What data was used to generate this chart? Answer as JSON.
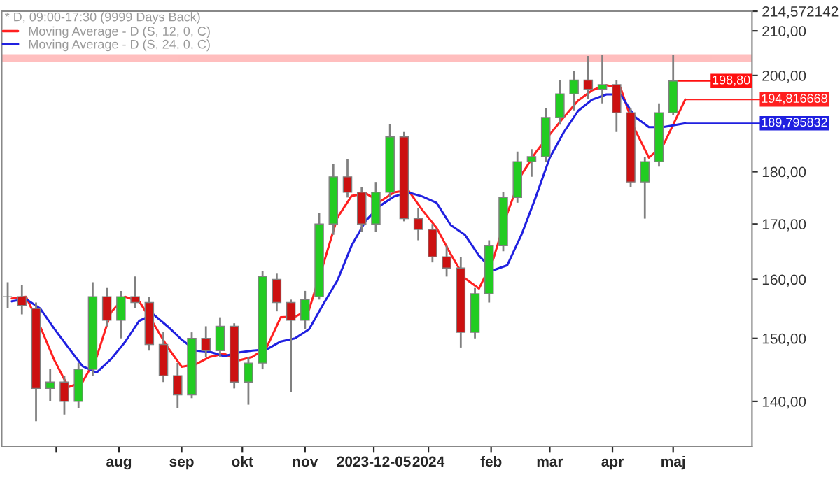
{
  "chart_data": {
    "type": "candlestick",
    "title": "* D, 09:00-17:30 (9999 Days Back)",
    "x": [
      "2023-06-07",
      "2023-06-14",
      "2023-06-21",
      "2023-06-28",
      "2023-07-05",
      "2023-07-12",
      "2023-07-19",
      "2023-07-26",
      "2023-08-02",
      "2023-08-09",
      "2023-08-16",
      "2023-08-23",
      "2023-08-30",
      "2023-09-06",
      "2023-09-13",
      "2023-09-20",
      "2023-09-27",
      "2023-10-04",
      "2023-10-11",
      "2023-10-18",
      "2023-10-25",
      "2023-11-01",
      "2023-11-08",
      "2023-11-15",
      "2023-11-22",
      "2023-11-29",
      "2023-12-06",
      "2023-12-13",
      "2023-12-20",
      "2023-12-27",
      "2024-01-03",
      "2024-01-10",
      "2024-01-17",
      "2024-01-24",
      "2024-01-31",
      "2024-02-07",
      "2024-02-14",
      "2024-02-21",
      "2024-02-28",
      "2024-03-06",
      "2024-03-13",
      "2024-03-20",
      "2024-03-27",
      "2024-04-03",
      "2024-04-10",
      "2024-04-17",
      "2024-04-24",
      "2024-05-01"
    ],
    "ohlc": [
      [
        157,
        159.5,
        155,
        157
      ],
      [
        157,
        159,
        154,
        155.5
      ],
      [
        155,
        156,
        137,
        142
      ],
      [
        142,
        145,
        140,
        143
      ],
      [
        143,
        144,
        138,
        140
      ],
      [
        140,
        146,
        139,
        145
      ],
      [
        145,
        159.5,
        144,
        157
      ],
      [
        157,
        158.5,
        152,
        153
      ],
      [
        153,
        158,
        150,
        157
      ],
      [
        157,
        160.5,
        155,
        156
      ],
      [
        156,
        157,
        148,
        149
      ],
      [
        149,
        151,
        143,
        144
      ],
      [
        144,
        146,
        139,
        141
      ],
      [
        141,
        151,
        140.5,
        150
      ],
      [
        150,
        152,
        147,
        148
      ],
      [
        148,
        153.5,
        147,
        152
      ],
      [
        152,
        152.5,
        142,
        143
      ],
      [
        143,
        147,
        139.5,
        146
      ],
      [
        146,
        161.5,
        145,
        160.5
      ],
      [
        160,
        161,
        154.5,
        156
      ],
      [
        156,
        156.5,
        141.5,
        153
      ],
      [
        153,
        158,
        151.5,
        156.5
      ],
      [
        157,
        172,
        156.5,
        170
      ],
      [
        170,
        181.6,
        168,
        179
      ],
      [
        179,
        182.5,
        175,
        176
      ],
      [
        176,
        177,
        168.5,
        170
      ],
      [
        170,
        178,
        168.5,
        176
      ],
      [
        176,
        189.6,
        175,
        187
      ],
      [
        187,
        188,
        170.5,
        171
      ],
      [
        171,
        173,
        167,
        169
      ],
      [
        169,
        170,
        163,
        164
      ],
      [
        164,
        166,
        160.5,
        162
      ],
      [
        162,
        164,
        148.5,
        151
      ],
      [
        151,
        158.5,
        150,
        157.5
      ],
      [
        157.5,
        167,
        156,
        166
      ],
      [
        166,
        176,
        165,
        175
      ],
      [
        175,
        184,
        174,
        182
      ],
      [
        182,
        184.5,
        179,
        183
      ],
      [
        183,
        193,
        182,
        191
      ],
      [
        191,
        199,
        189.5,
        196
      ],
      [
        196,
        201,
        192.5,
        199
      ],
      [
        199,
        204.3,
        195,
        197
      ],
      [
        197,
        204.5,
        194,
        198
      ],
      [
        198,
        199,
        188,
        192
      ],
      [
        192,
        193,
        177,
        178
      ],
      [
        178,
        183,
        171,
        182
      ],
      [
        182,
        194,
        181,
        192
      ],
      [
        192,
        204.5,
        191.5,
        198.8
      ]
    ],
    "series": [
      {
        "name": "Moving Average - D (S, 12, 0, C)",
        "type": "line",
        "color": "#ff2020",
        "x": [
          "2023-06-09",
          "2023-06-16",
          "2023-06-23",
          "2023-06-30",
          "2023-07-07",
          "2023-07-14",
          "2023-07-21",
          "2023-07-28",
          "2023-08-04",
          "2023-08-11",
          "2023-08-18",
          "2023-08-25",
          "2023-09-01",
          "2023-09-08",
          "2023-09-15",
          "2023-09-22",
          "2023-09-29",
          "2023-10-06",
          "2023-10-13",
          "2023-10-20",
          "2023-10-27",
          "2023-11-03",
          "2023-11-10",
          "2023-11-17",
          "2023-11-24",
          "2023-12-01",
          "2023-12-08",
          "2023-12-15",
          "2023-12-22",
          "2023-12-29",
          "2024-01-05",
          "2024-01-12",
          "2024-01-19",
          "2024-01-26",
          "2024-02-02",
          "2024-02-09",
          "2024-02-16",
          "2024-02-23",
          "2024-03-01",
          "2024-03-08",
          "2024-03-15",
          "2024-03-22",
          "2024-03-29",
          "2024-04-05",
          "2024-04-12",
          "2024-04-19",
          "2024-04-26",
          "2024-05-07"
        ],
        "values": [
          156.7,
          157,
          152,
          146.5,
          142.2,
          143,
          147,
          154.3,
          157,
          156.2,
          152.5,
          148.6,
          145.4,
          145.8,
          147,
          147.5,
          146.4,
          147,
          148.5,
          153.5,
          153.6,
          154.8,
          162.6,
          171.2,
          175.3,
          175.8,
          174.2,
          176,
          176.4,
          172.6,
          169.3,
          164.5,
          160.2,
          158.4,
          163.5,
          172,
          179.4,
          183.8,
          187.5,
          191.1,
          194.6,
          196.8,
          197.9,
          197.3,
          188.6,
          182.8,
          185.2,
          194.816668
        ]
      },
      {
        "name": "Moving Average - D (S, 24, 0, C)",
        "type": "line",
        "color": "#2020e0",
        "x": [
          "2023-06-09",
          "2023-06-16",
          "2023-06-23",
          "2023-06-30",
          "2023-07-07",
          "2023-07-14",
          "2023-07-21",
          "2023-07-28",
          "2023-08-04",
          "2023-08-11",
          "2023-08-18",
          "2023-08-25",
          "2023-09-01",
          "2023-09-08",
          "2023-09-15",
          "2023-09-22",
          "2023-09-29",
          "2023-10-06",
          "2023-10-13",
          "2023-10-20",
          "2023-10-27",
          "2023-11-03",
          "2023-11-10",
          "2023-11-17",
          "2023-11-24",
          "2023-12-01",
          "2023-12-08",
          "2023-12-15",
          "2023-12-22",
          "2023-12-29",
          "2024-01-05",
          "2024-01-12",
          "2024-01-19",
          "2024-01-26",
          "2024-02-02",
          "2024-02-09",
          "2024-02-16",
          "2024-02-23",
          "2024-03-01",
          "2024-03-08",
          "2024-03-15",
          "2024-03-22",
          "2024-03-29",
          "2024-04-05",
          "2024-04-12",
          "2024-04-19",
          "2024-04-26",
          "2024-05-07"
        ],
        "values": [
          156.2,
          156.6,
          155,
          151.6,
          148.5,
          145.5,
          144.5,
          146.6,
          149.4,
          152.9,
          154,
          152,
          149.8,
          148,
          147.8,
          147.1,
          147.7,
          148,
          148.2,
          149.5,
          150,
          151.5,
          155.7,
          159.8,
          166,
          170.6,
          173.4,
          175.2,
          176,
          175.2,
          174,
          169.8,
          168,
          164.2,
          161.6,
          162.5,
          168,
          175,
          182.8,
          188,
          192.4,
          194.8,
          195.9,
          195.9,
          191.2,
          189,
          189,
          189.795832
        ]
      }
    ],
    "bands": [
      {
        "axis": "y",
        "from": 203.2,
        "to": 204.5,
        "color": "#ff0000"
      }
    ],
    "annotations": [
      "198,80",
      {
        "text": "194,816668",
        "x": "2024-05-07",
        "y": 194.816668
      },
      {
        "text": "189,795832",
        "x": "2024-05-07",
        "y": 189.795832
      }
    ],
    "xlim": [
      "2023-06-04",
      "2024-06-09"
    ],
    "xticks": [
      {
        "value": "2023-07-01",
        "label": null
      },
      {
        "value": "2023-08-01",
        "label": "aug"
      },
      {
        "value": "2023-09-01",
        "label": "sep"
      },
      {
        "value": "2023-10-01",
        "label": "okt"
      },
      {
        "value": "2023-11-01",
        "label": "nov"
      },
      {
        "value": "2023-12-05",
        "label": "2023-12-05"
      },
      {
        "value": "2024-01-01",
        "label": "2024"
      },
      {
        "value": "2024-02-01",
        "label": "feb"
      },
      {
        "value": "2024-03-01",
        "label": "mar"
      },
      {
        "value": "2024-04-01",
        "label": "apr"
      },
      {
        "value": "2024-05-01",
        "label": "maj"
      }
    ],
    "ylim": [
      133.3,
      214.572142
    ],
    "yticks": [
      {
        "value": 140,
        "label": "140,00"
      },
      {
        "value": 150,
        "label": "150,00"
      },
      {
        "value": 160,
        "label": "160,00"
      },
      {
        "value": 170,
        "label": "170,00"
      },
      {
        "value": 180,
        "label": "180,00"
      },
      {
        "value": 200,
        "label": "200,00"
      },
      {
        "value": 210,
        "label": "210,00"
      },
      {
        "value": 214.572142,
        "label": "214,572142"
      }
    ],
    "log": true,
    "grid": false,
    "legend": "top left"
  }
}
